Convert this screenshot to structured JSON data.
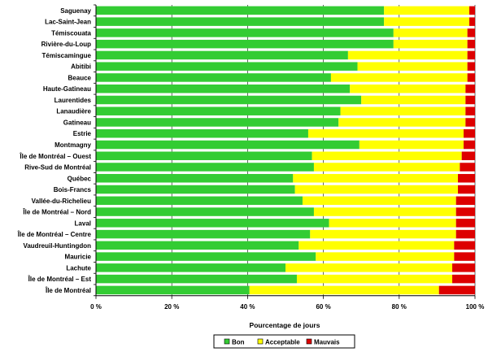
{
  "chart_data": {
    "type": "bar",
    "orientation": "horizontal",
    "stacked": true,
    "categories": [
      "Saguenay",
      "Lac-Saint-Jean",
      "Témiscouata",
      "Rivière-du-Loup",
      "Témiscamingue",
      "Abitibi",
      "Beauce",
      "Haute-Gatineau",
      "Laurentides",
      "Lanaudière",
      "Gatineau",
      "Estrie",
      "Montmagny",
      "Île de Montréal – Ouest",
      "Rive-Sud de Montréal",
      "Québec",
      "Bois-Francs",
      "Vallée-du-Richelieu",
      "Île de Montréal – Nord",
      "Laval",
      "Île de Montréal – Centre",
      "Vaudreuil-Huntingdon",
      "Mauricie",
      "Lachute",
      "Île de Montréal – Est",
      "Île de Montréal"
    ],
    "series": [
      {
        "name": "Bon",
        "color": "#33cc33",
        "values": [
          76,
          76,
          78.5,
          78.5,
          66.5,
          69,
          62,
          67,
          70,
          64.5,
          64,
          56,
          69.5,
          57,
          57.5,
          52,
          52.5,
          54.5,
          57.5,
          61.5,
          56.5,
          53.5,
          58,
          50,
          53,
          40.5
        ]
      },
      {
        "name": "Acceptable",
        "color": "#ffff00",
        "values": [
          22.5,
          22.5,
          19.5,
          19.5,
          31.5,
          29,
          36,
          30.5,
          27.5,
          33,
          33.5,
          41,
          27.5,
          39.5,
          38.5,
          43.5,
          43,
          40.5,
          37.5,
          33.5,
          38.5,
          41,
          36.5,
          44,
          41,
          50
        ]
      },
      {
        "name": "Mauvais",
        "color": "#dd0000",
        "values": [
          1.5,
          1.5,
          2,
          2,
          2,
          2,
          2,
          2.5,
          2.5,
          2.5,
          2.5,
          3,
          3,
          3.5,
          4,
          4.5,
          4.5,
          5,
          5,
          5,
          5,
          5.5,
          5.5,
          6,
          6,
          9.5
        ]
      }
    ],
    "xlim": [
      0,
      100
    ],
    "xticks": [
      "0 %",
      "20 %",
      "40 %",
      "60 %",
      "80 %",
      "100 %"
    ],
    "xlabel": "Pourcentage de jours",
    "grid": "vertical",
    "legend": {
      "position": "bottom-center",
      "entries": [
        "Bon",
        "Acceptable",
        "Mauvais"
      ]
    }
  }
}
